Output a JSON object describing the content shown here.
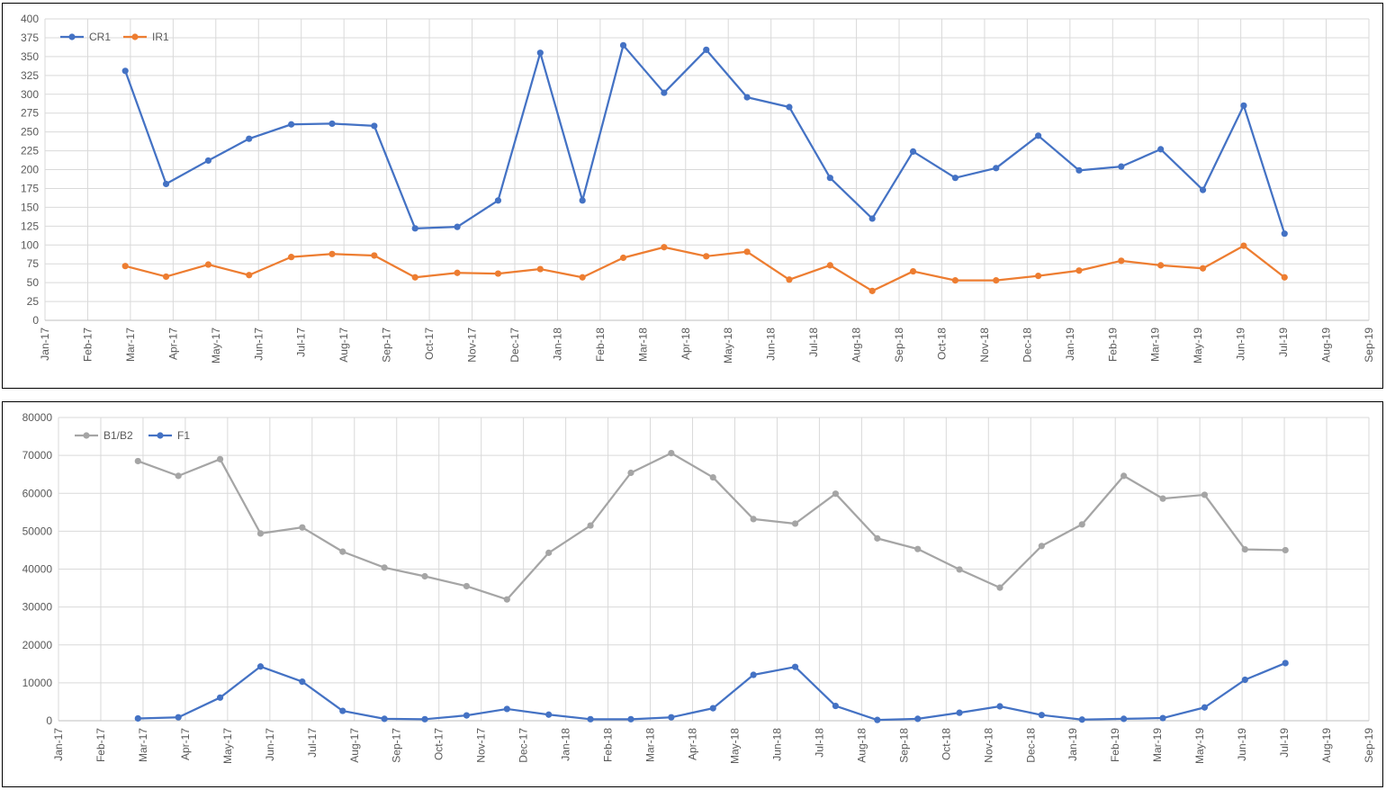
{
  "chart_data": [
    {
      "type": "line",
      "x_ticks": [
        "Jan-17",
        "Feb-17",
        "Mar-17",
        "Apr-17",
        "May-17",
        "Jun-17",
        "Jul-17",
        "Aug-17",
        "Sep-17",
        "Oct-17",
        "Nov-17",
        "Dec-17",
        "Jan-18",
        "Feb-18",
        "Mar-18",
        "Apr-18",
        "May-18",
        "Jun-18",
        "Jul-18",
        "Aug-18",
        "Sep-18",
        "Oct-18",
        "Nov-18",
        "Dec-18",
        "Jan-19",
        "Feb-19",
        "Mar-19",
        "May-19",
        "Jun-19",
        "Jul-19",
        "Aug-19",
        "Sep-19"
      ],
      "x": [
        "2017-03-01",
        "2017-03-31",
        "2017-05-01",
        "2017-05-31",
        "2017-07-01",
        "2017-07-31",
        "2017-08-31",
        "2017-09-30",
        "2017-10-31",
        "2017-11-30",
        "2017-12-31",
        "2018-01-31",
        "2018-03-02",
        "2018-04-01",
        "2018-05-02",
        "2018-06-01",
        "2018-07-02",
        "2018-08-01",
        "2018-09-01",
        "2018-10-01",
        "2018-11-01",
        "2018-12-01",
        "2019-01-01",
        "2019-01-31",
        "2019-03-03",
        "2019-04-01",
        "2019-05-02",
        "2019-06-01",
        "2019-07-01"
      ],
      "series": [
        {
          "name": "CR1",
          "color": "#4472C4",
          "values": [
            331,
            181,
            212,
            241,
            260,
            261,
            258,
            122,
            124,
            159,
            355,
            159,
            365,
            302,
            359,
            296,
            283,
            189,
            135,
            224,
            189,
            202,
            245,
            199,
            204,
            227,
            173,
            285,
            115
          ]
        },
        {
          "name": "IR1",
          "color": "#ED7D31",
          "values": [
            72,
            58,
            74,
            60,
            84,
            88,
            86,
            57,
            63,
            62,
            68,
            57,
            83,
            97,
            85,
            91,
            54,
            73,
            39,
            65,
            53,
            53,
            59,
            66,
            79,
            73,
            69,
            99,
            57
          ]
        }
      ],
      "ylim": [
        0,
        400
      ],
      "y_ticks": [
        "0",
        "25",
        "50",
        "75",
        "100",
        "125",
        "150",
        "175",
        "200",
        "225",
        "250",
        "275",
        "300",
        "325",
        "350",
        "375",
        "400"
      ],
      "grid": true,
      "legend": "top-left"
    },
    {
      "type": "line",
      "x_ticks": [
        "Jan-17",
        "Feb-17",
        "Mar-17",
        "Apr-17",
        "May-17",
        "Jun-17",
        "Jul-17",
        "Aug-17",
        "Sep-17",
        "Oct-17",
        "Nov-17",
        "Dec-17",
        "Jan-18",
        "Feb-18",
        "Mar-18",
        "Apr-18",
        "May-18",
        "Jun-18",
        "Jul-18",
        "Aug-18",
        "Sep-18",
        "Oct-18",
        "Nov-18",
        "Dec-18",
        "Jan-19",
        "Feb-19",
        "Mar-19",
        "May-19",
        "Jun-19",
        "Jul-19",
        "Aug-19",
        "Sep-19"
      ],
      "x": [
        "2017-03-01",
        "2017-03-31",
        "2017-05-01",
        "2017-05-31",
        "2017-07-01",
        "2017-07-31",
        "2017-08-31",
        "2017-09-30",
        "2017-10-31",
        "2017-11-30",
        "2017-12-31",
        "2018-01-31",
        "2018-03-02",
        "2018-04-01",
        "2018-05-02",
        "2018-06-01",
        "2018-07-02",
        "2018-08-01",
        "2018-09-01",
        "2018-10-01",
        "2018-11-01",
        "2018-12-01",
        "2019-01-01",
        "2019-01-31",
        "2019-03-03",
        "2019-04-01",
        "2019-05-02",
        "2019-06-01",
        "2019-07-01"
      ],
      "series": [
        {
          "name": "B1/B2",
          "color": "#A5A5A5",
          "values": [
            68500,
            64600,
            69000,
            49400,
            51000,
            44600,
            40400,
            38100,
            35500,
            32000,
            44300,
            51500,
            65400,
            70600,
            64200,
            53200,
            52000,
            59900,
            48100,
            45300,
            39900,
            35100,
            46100,
            51800,
            64600,
            58600,
            59600,
            45200,
            45000
          ]
        },
        {
          "name": "F1",
          "color": "#4472C4",
          "values": [
            600,
            900,
            6100,
            14300,
            10300,
            2600,
            500,
            400,
            1400,
            3100,
            1600,
            400,
            400,
            900,
            3300,
            12100,
            14200,
            3900,
            200,
            500,
            2100,
            3800,
            1500,
            300,
            500,
            700,
            3500,
            10800,
            15200
          ]
        }
      ],
      "ylim": [
        0,
        80000
      ],
      "y_ticks": [
        "0",
        "10000",
        "20000",
        "30000",
        "40000",
        "50000",
        "60000",
        "70000",
        "80000"
      ],
      "grid": true,
      "legend": "top-left"
    }
  ]
}
